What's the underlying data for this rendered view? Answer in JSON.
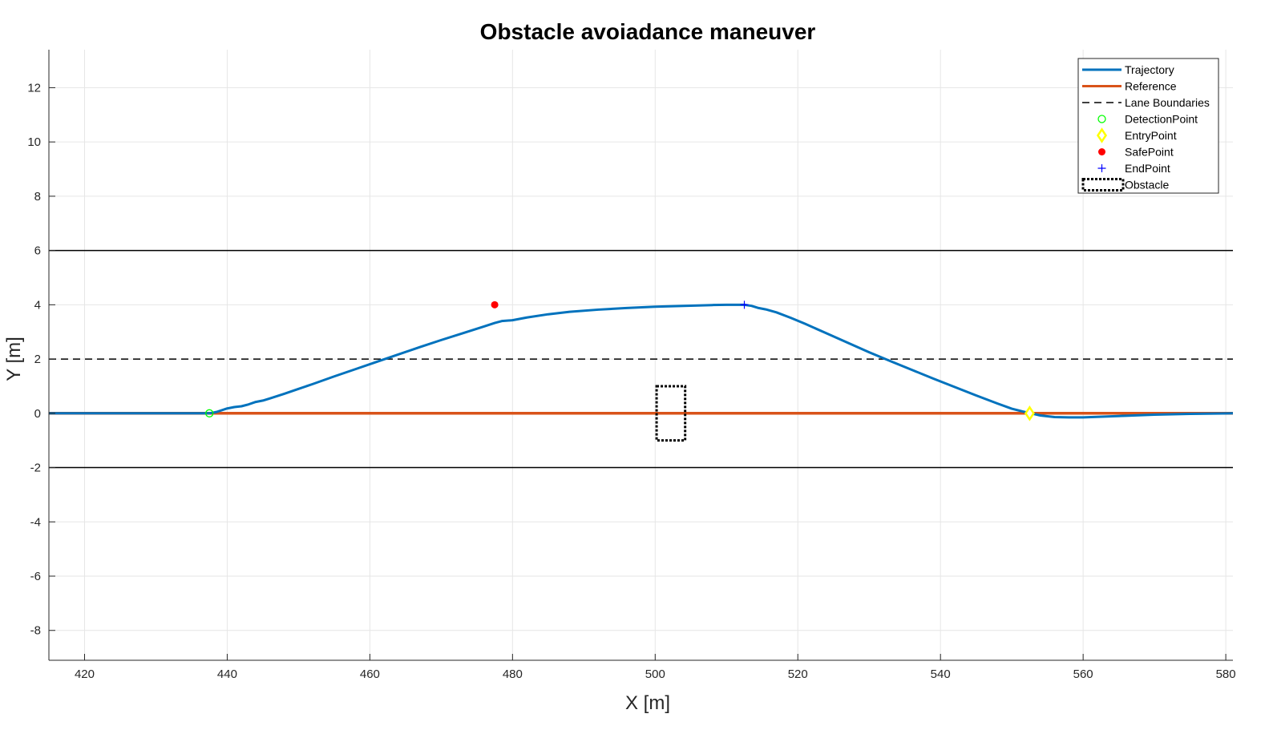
{
  "chart_data": {
    "type": "line",
    "title": "Obstacle avoiadance maneuver",
    "xlabel": "X [m]",
    "ylabel": "Y [m]",
    "xlim": [
      415,
      581
    ],
    "ylim": [
      -9.1,
      13.4
    ],
    "xticks": [
      420,
      440,
      460,
      480,
      500,
      520,
      540,
      560,
      580
    ],
    "yticks": [
      -8,
      -6,
      -4,
      -2,
      0,
      2,
      4,
      6,
      8,
      10,
      12
    ],
    "grid": true,
    "legend": {
      "placement": "top-right",
      "entries": [
        "Trajectory",
        "Reference",
        "Lane Boundaries",
        "DetectionPoint",
        "EntryPoint",
        "SafePoint",
        "EndPoint",
        "Obstacle"
      ]
    },
    "colors": {
      "trajectory": "#0072BD",
      "reference": "#D95319",
      "lane_boundaries": "#000000",
      "detection_point": "#00FF00",
      "entry_point": "#FFFF00",
      "safe_point": "#FF0000",
      "end_point": "#0000FF",
      "obstacle": "#000000",
      "grid": "#e6e6e6",
      "axis": "#262626"
    },
    "series": [
      {
        "name": "Trajectory",
        "style": "solid",
        "x": [
          415,
          437.5,
          438.5,
          440,
          441,
          442,
          443,
          444,
          445,
          446,
          448,
          450,
          452,
          455,
          458,
          461,
          464,
          467,
          470,
          473,
          476,
          477.5,
          478.5,
          480,
          482,
          485,
          488,
          492,
          496,
          500,
          504,
          508,
          510,
          512.5,
          513.5,
          514.5,
          515.5,
          517,
          519,
          521,
          524,
          527,
          530,
          533,
          536,
          539,
          542,
          545,
          548,
          550,
          551.5,
          552.5,
          554,
          556,
          558,
          560,
          563,
          566,
          570,
          575,
          581
        ],
        "y": [
          0,
          0,
          0.05,
          0.18,
          0.23,
          0.26,
          0.33,
          0.42,
          0.47,
          0.55,
          0.72,
          0.9,
          1.08,
          1.36,
          1.63,
          1.9,
          2.17,
          2.44,
          2.7,
          2.95,
          3.2,
          3.33,
          3.4,
          3.43,
          3.53,
          3.65,
          3.74,
          3.82,
          3.88,
          3.93,
          3.96,
          3.99,
          4.0,
          4.0,
          3.96,
          3.88,
          3.83,
          3.72,
          3.52,
          3.3,
          2.95,
          2.6,
          2.25,
          1.92,
          1.6,
          1.28,
          0.97,
          0.66,
          0.36,
          0.17,
          0.07,
          0.01,
          -0.08,
          -0.14,
          -0.15,
          -0.15,
          -0.12,
          -0.09,
          -0.05,
          -0.02,
          0
        ]
      },
      {
        "name": "Reference",
        "style": "solid",
        "x": [
          415,
          581
        ],
        "y": [
          0,
          0
        ]
      },
      {
        "name": "Lane Boundaries",
        "style": "dashed",
        "x": [
          415,
          581
        ],
        "y": [
          2,
          2
        ]
      },
      {
        "style": "solid",
        "x": [
          415,
          581
        ],
        "y": [
          6,
          6
        ]
      },
      {
        "style": "solid",
        "x": [
          415,
          581
        ],
        "y": [
          -2,
          -2
        ]
      }
    ],
    "points": [
      {
        "name": "DetectionPoint",
        "marker": "circle-open",
        "x": 437.5,
        "y": 0
      },
      {
        "name": "EntryPoint",
        "marker": "diamond",
        "x": 552.5,
        "y": 0
      },
      {
        "name": "SafePoint",
        "marker": "circle-filled",
        "x": 477.5,
        "y": 4
      },
      {
        "name": "EndPoint",
        "marker": "plus",
        "x": 512.5,
        "y": 4
      }
    ],
    "obstacle": {
      "name": "Obstacle",
      "x_range": [
        500.2,
        504.2
      ],
      "y_range": [
        -1,
        1
      ]
    }
  }
}
